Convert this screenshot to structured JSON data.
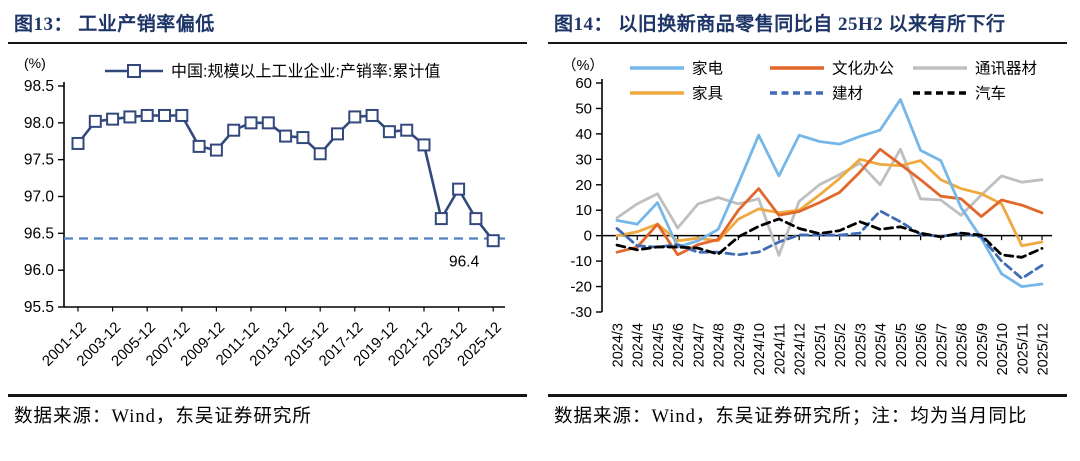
{
  "fig13": {
    "title": "图13： 工业产销率偏低",
    "source": "数据来源：Wind，东吴证券研究所"
  },
  "fig14": {
    "title": "图14： 以旧换新商品零售同比自 25H2 以来有所下行",
    "source": "数据来源：Wind，东吴证券研究所；注：均为当月同比"
  },
  "chart_data": [
    {
      "name": "industrial-sales-ratio",
      "type": "line",
      "title": "工业产销率偏低",
      "unit_label": "(%)",
      "legend_position": "top",
      "grid": false,
      "x": [
        "2001-12",
        "2002-12",
        "2003-12",
        "2004-12",
        "2005-12",
        "2006-12",
        "2007-12",
        "2008-12",
        "2009-12",
        "2010-12",
        "2011-12",
        "2012-12",
        "2013-12",
        "2014-12",
        "2015-12",
        "2016-12",
        "2017-12",
        "2018-12",
        "2019-12",
        "2020-12",
        "2021-12",
        "2022-12",
        "2023-12",
        "2024-12",
        "2025-12"
      ],
      "x_tick_labels": [
        "2001-12",
        "2003-12",
        "2005-12",
        "2007-12",
        "2009-12",
        "2011-12",
        "2013-12",
        "2015-12",
        "2017-12",
        "2019-12",
        "2021-12",
        "2023-12",
        "2025-12"
      ],
      "ylim": [
        95.5,
        98.5
      ],
      "ytick_step": 0.5,
      "series": [
        {
          "name": "中国:规模以上工业企业:产销率:累计值",
          "color": "#33487C",
          "style": "solid",
          "marker": "square",
          "values": [
            97.72,
            98.02,
            98.05,
            98.08,
            98.1,
            98.1,
            98.1,
            97.68,
            97.63,
            97.9,
            98.0,
            98.0,
            97.82,
            97.8,
            97.58,
            97.85,
            98.08,
            98.1,
            97.88,
            97.9,
            97.7,
            96.7,
            97.1,
            96.7,
            96.4
          ]
        }
      ],
      "ref_line": {
        "value": 96.43,
        "color": "#4E81BD",
        "style": "dashed"
      },
      "annotation": {
        "text": "96.4",
        "x_index": 24,
        "y": 96.4
      }
    },
    {
      "name": "trade-in-retail-yoy",
      "type": "line",
      "title": "以旧换新商品零售同比",
      "unit_label": "（%）",
      "legend_position": "top",
      "grid": false,
      "x": [
        "2024/3",
        "2024/4",
        "2024/5",
        "2024/6",
        "2024/7",
        "2024/8",
        "2024/9",
        "2024/10",
        "2024/11",
        "2024/12",
        "2025/1",
        "2025/2",
        "2025/3",
        "2025/4",
        "2025/5",
        "2025/6",
        "2025/7",
        "2025/8",
        "2025/9",
        "2025/10",
        "2025/11",
        "2025/12"
      ],
      "ylim": [
        -30,
        60
      ],
      "ytick_step": 10,
      "series": [
        {
          "name": "家电",
          "color": "#76B7E9",
          "style": "solid",
          "values": [
            6,
            4.5,
            13,
            -4.5,
            -2,
            2.5,
            20.5,
            39.5,
            23.5,
            39.5,
            37,
            36,
            39,
            41.5,
            53.5,
            33.5,
            29.5,
            11,
            -1,
            -15,
            -20,
            -19
          ]
        },
        {
          "name": "文化办公",
          "color": "#E2672B",
          "style": "solid",
          "values": [
            -6.5,
            -4.5,
            4.5,
            -7.5,
            -3.5,
            -1.5,
            10,
            18.5,
            8,
            9.5,
            13,
            17,
            25,
            34,
            28,
            22,
            15.5,
            14.5,
            7.5,
            14,
            12,
            9
          ]
        },
        {
          "name": "通讯器材",
          "color": "#BFBFBF",
          "style": "solid",
          "values": [
            7,
            12.5,
            16.5,
            3,
            12.5,
            15,
            12.5,
            14.5,
            -7.7,
            13.5,
            20,
            24,
            28.5,
            20,
            34,
            14.5,
            14,
            8,
            16,
            23.5,
            21,
            22
          ]
        },
        {
          "name": "家具",
          "color": "#EFA93F",
          "style": "solid",
          "values": [
            0,
            1.5,
            4.5,
            -2,
            -1,
            -2,
            6.5,
            10.5,
            9,
            10,
            16,
            22.5,
            30,
            28,
            27.5,
            29.5,
            22,
            18.5,
            16.5,
            12.5,
            -4,
            -2.5
          ]
        },
        {
          "name": "建材",
          "color": "#3F6CB4",
          "style": "dashed",
          "values": [
            2.8,
            -4,
            -4.5,
            -3.5,
            -6.5,
            -6.5,
            -7.5,
            -6.4,
            -2.5,
            0.3,
            0.2,
            0.2,
            1,
            9.7,
            5.5,
            0.5,
            -0.3,
            0.8,
            -0.5,
            -10,
            -16.8,
            -11.7
          ]
        },
        {
          "name": "汽车",
          "color": "#000000",
          "style": "dashed",
          "values": [
            -3.7,
            -5.6,
            -4.4,
            -4.5,
            -4.9,
            -7.3,
            -0.5,
            3.7,
            6.6,
            2.8,
            0.8,
            2,
            5.5,
            2.5,
            3.5,
            1,
            -0.5,
            1,
            0.2,
            -7.5,
            -8.5,
            -5
          ]
        }
      ],
      "draw_order": [
        2,
        3,
        1,
        0,
        4,
        5
      ]
    }
  ]
}
